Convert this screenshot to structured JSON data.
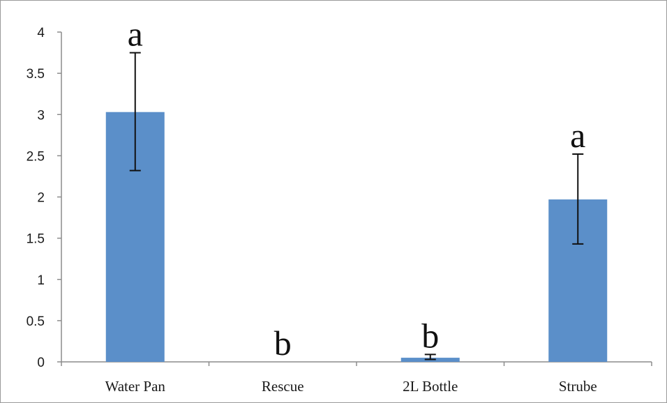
{
  "chart_data": {
    "type": "bar",
    "title": "",
    "xlabel": "",
    "ylabel": "",
    "categories": [
      "Water Pan",
      "Rescue",
      "2L Bottle",
      "Strube"
    ],
    "values": [
      3.03,
      0.0,
      0.05,
      1.97
    ],
    "error_low": [
      2.32,
      0.0,
      0.03,
      1.43
    ],
    "error_high": [
      3.75,
      0.0,
      0.09,
      2.52
    ],
    "significance_letters": [
      "a",
      "b",
      "b",
      "a"
    ],
    "ylim": [
      0,
      4
    ],
    "yticks": [
      "0",
      "0.5",
      "1",
      "1.5",
      "2",
      "2.5",
      "3",
      "3.5",
      "4"
    ],
    "grid": false,
    "legend": "none",
    "bar_color": "#5b8fc9"
  }
}
